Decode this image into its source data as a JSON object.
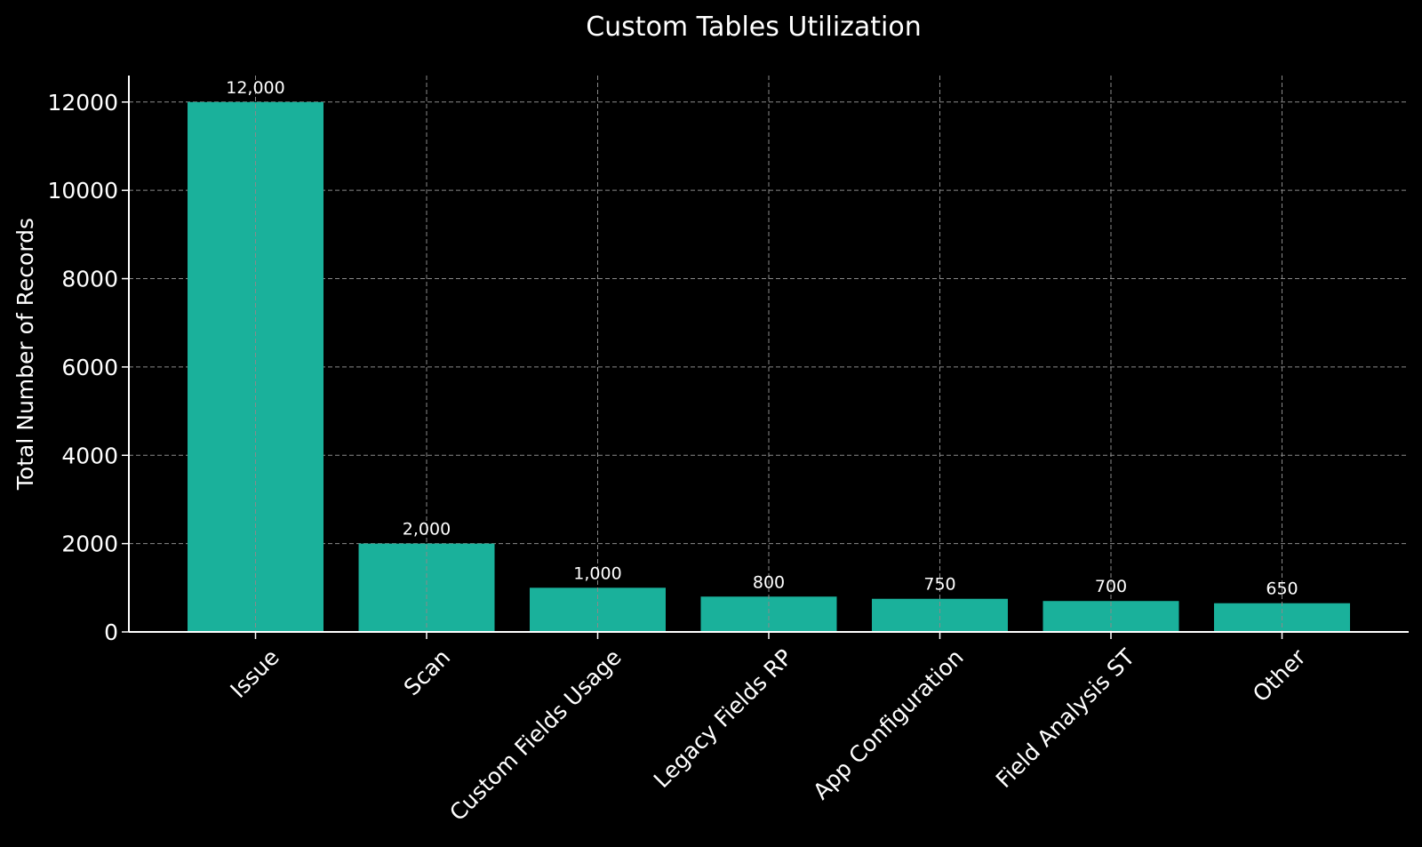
{
  "chart_data": {
    "type": "bar",
    "title": "Custom Tables Utilization",
    "xlabel": "",
    "ylabel": "Total Number of Records",
    "categories": [
      "Issue",
      "Scan",
      "Custom Fields Usage",
      "Legacy Fields RP",
      "App Configuration",
      "Field Analysis ST",
      "Other"
    ],
    "values": [
      12000,
      2000,
      1000,
      800,
      750,
      700,
      650
    ],
    "data_labels": [
      "12,000",
      "2,000",
      "1,000",
      "800",
      "750",
      "700",
      "650"
    ],
    "yticks": [
      0,
      2000,
      4000,
      6000,
      8000,
      10000,
      12000
    ],
    "ytick_labels": [
      "0",
      "2000",
      "4000",
      "6000",
      "8000",
      "10000",
      "12000"
    ],
    "ylim": [
      0,
      12600
    ],
    "grid": true,
    "bar_color": "#1ab19b",
    "background": "#000000",
    "text_color": "#ffffff"
  }
}
